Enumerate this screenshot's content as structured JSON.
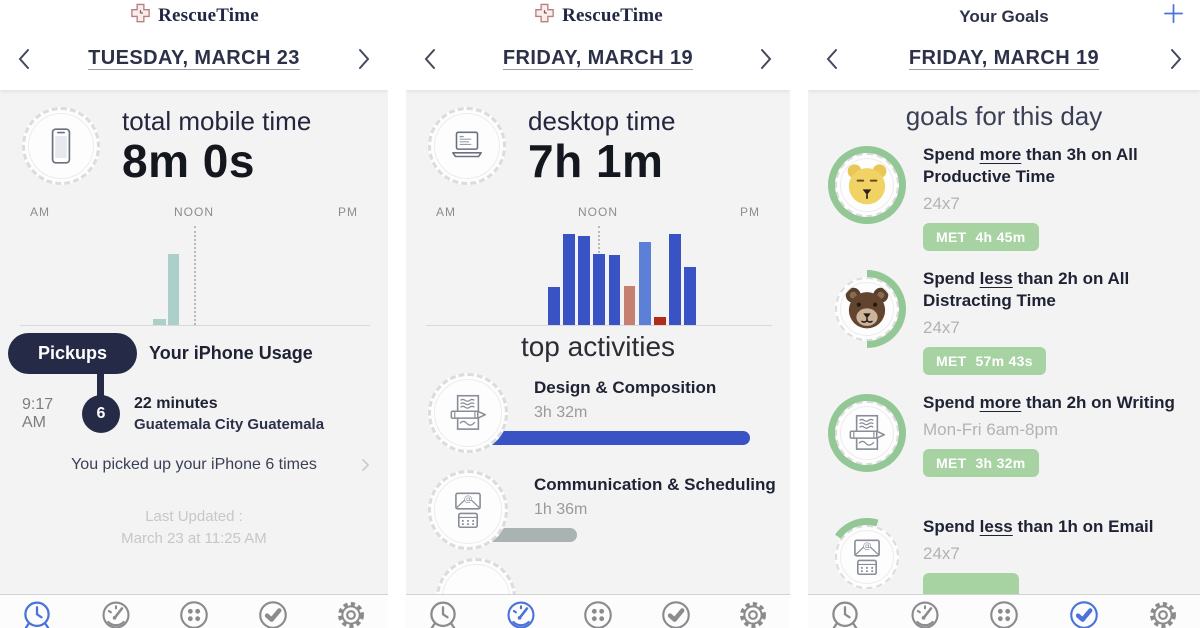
{
  "colors": {
    "navy": "#252a47",
    "accent_blue": "#4a72d8",
    "bar_blue": "#3a53c4",
    "bar_light_blue": "#5c7fd8",
    "bar_salmon": "#c5806f",
    "bar_dark_red": "#b02c18",
    "bar_teal": "#abd0ca",
    "goal_green": "#93c795",
    "badge_green": "#a7d2a2",
    "content_bg": "#f3f3f4"
  },
  "bottom_nav": {
    "items": [
      {
        "id": "clock",
        "icon": "clock-icon",
        "label": "time log"
      },
      {
        "id": "gauge",
        "icon": "gauge-icon",
        "label": "dashboard"
      },
      {
        "id": "apps",
        "icon": "apps-icon",
        "label": "categories"
      },
      {
        "id": "check",
        "icon": "check-icon",
        "label": "goals"
      },
      {
        "id": "gear",
        "icon": "gear-icon",
        "label": "settings"
      }
    ]
  },
  "left_panel": {
    "logo_text": "RescueTime",
    "date": "TUESDAY, MARCH 23",
    "summary": {
      "label": "total mobile time",
      "value": "8m 0s"
    },
    "chart": {
      "type": "bar",
      "axis_labels": [
        "AM",
        "NOON",
        "PM"
      ],
      "bars": [
        {
          "x": 0.394,
          "w": 13,
          "h": 0.06,
          "color": "#abd0ca"
        },
        {
          "x": 0.433,
          "w": 11,
          "h": 0.7,
          "color": "#abd0ca"
        }
      ]
    },
    "pickups": {
      "badge": "Pickups",
      "title": "Your iPhone Usage",
      "time": "9:17 AM",
      "count": "6",
      "duration": "22 minutes",
      "location": "Guatemala City Guatemala",
      "summary": "You picked up your iPhone 6 times"
    },
    "last_updated_1": "Last Updated :",
    "last_updated_2": "March 23 at 11:25 AM"
  },
  "middle_panel": {
    "logo_text": "RescueTime",
    "date": "FRIDAY, MARCH 19",
    "summary": {
      "label": "desktop time",
      "value": "7h 1m"
    },
    "chart": {
      "type": "bar",
      "axis_labels": [
        "AM",
        "NOON",
        "PM"
      ],
      "bars": [
        {
          "x": 0.37,
          "w": 11.5,
          "h": 0.38,
          "color": "#3a53c4"
        },
        {
          "x": 0.409,
          "w": 11.5,
          "h": 0.9,
          "color": "#3a53c4"
        },
        {
          "x": 0.449,
          "w": 11.5,
          "h": 0.88,
          "color": "#3a53c4"
        },
        {
          "x": 0.488,
          "w": 11.5,
          "h": 0.7,
          "color": "#3a53c4"
        },
        {
          "x": 0.528,
          "w": 11.5,
          "h": 0.69,
          "color": "#3a53c4"
        },
        {
          "x": 0.567,
          "w": 11.5,
          "h": 0.39,
          "color": "#c5806f"
        },
        {
          "x": 0.607,
          "w": 11.5,
          "h": 0.82,
          "color": "#5c7fd8"
        },
        {
          "x": 0.646,
          "w": 11.5,
          "h": 0.08,
          "color": "#b02c18"
        },
        {
          "x": 0.686,
          "w": 11.5,
          "h": 0.9,
          "color": "#3a53c4"
        },
        {
          "x": 0.725,
          "w": 11.5,
          "h": 0.57,
          "color": "#3a53c4"
        }
      ]
    },
    "section_title": "top activities",
    "activities": [
      {
        "name": "Design & Composition",
        "duration": "3h 32m",
        "bar_width_pct": 73,
        "bar_color": "#3a53c4"
      },
      {
        "name": "Communication & Scheduling",
        "duration": "1h 36m",
        "bar_width_pct": 25,
        "bar_color": "#a9b3b1"
      }
    ]
  },
  "right_panel": {
    "title": "Your Goals",
    "add_label": "+",
    "date": "FRIDAY, MARCH 19",
    "section_title": "goals for this day",
    "goals": [
      {
        "pre": "Spend ",
        "keyword": "more",
        "post": " than 3h on All Productive Time",
        "schedule": "24x7",
        "met_label": "MET",
        "met_value": "4h 45m",
        "ring_pct": 100,
        "ring_from_deg": 0,
        "icon": "lion-icon"
      },
      {
        "pre": "Spend ",
        "keyword": "less",
        "post": " than 2h on All Distracting Time",
        "schedule": "24x7",
        "met_label": "MET",
        "met_value": "57m 43s",
        "ring_pct": 50,
        "ring_from_deg": 0,
        "icon": "bear-icon"
      },
      {
        "pre": "Spend ",
        "keyword": "more",
        "post": " than 2h on Writing",
        "schedule": "Mon-Fri 6am-8pm",
        "met_label": "MET",
        "met_value": "3h 32m",
        "ring_pct": 100,
        "ring_from_deg": 0,
        "icon": "writing-icon"
      },
      {
        "pre": "Spend ",
        "keyword": "less",
        "post": " than 1h on Email",
        "schedule": "24x7",
        "ring_pct": 20,
        "ring_from_deg": -55,
        "icon": "email-icon"
      }
    ]
  }
}
